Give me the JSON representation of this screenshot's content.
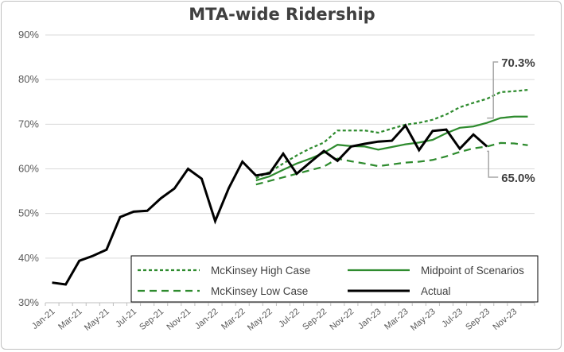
{
  "chart_data": {
    "type": "line",
    "title": "MTA-wide Ridership",
    "xlabel": "",
    "ylabel": "",
    "ylim": [
      30,
      90
    ],
    "y_ticks": [
      "30%",
      "40%",
      "50%",
      "60%",
      "70%",
      "80%",
      "90%"
    ],
    "x_ticks": [
      "Jan-21",
      "Mar-21",
      "May-21",
      "Jul-21",
      "Sep-21",
      "Nov-21",
      "Jan-22",
      "Mar-22",
      "May-22",
      "Jul-22",
      "Sep-22",
      "Nov-22",
      "Jan-23",
      "Mar-23",
      "May-23",
      "Jul-23",
      "Sep-23",
      "Nov-23"
    ],
    "grid": true,
    "legend_position": "bottom-inside",
    "series": [
      {
        "name": "Actual",
        "color": "#000000",
        "style": "solid",
        "x": [
          "Jan-21",
          "Feb-21",
          "Mar-21",
          "Apr-21",
          "May-21",
          "Jun-21",
          "Jul-21",
          "Aug-21",
          "Sep-21",
          "Oct-21",
          "Nov-21",
          "Dec-21",
          "Jan-22",
          "Feb-22",
          "Mar-22",
          "Apr-22",
          "May-22",
          "Jun-22",
          "Jul-22",
          "Aug-22",
          "Sep-22",
          "Oct-22",
          "Nov-22",
          "Dec-22",
          "Jan-23",
          "Feb-23",
          "Mar-23",
          "Apr-23",
          "May-23",
          "Jun-23",
          "Jul-23",
          "Aug-23",
          "Sep-23"
        ],
        "values": [
          34.5,
          34.1,
          39.4,
          40.5,
          41.9,
          49.2,
          50.4,
          50.6,
          53.4,
          55.6,
          60.0,
          57.8,
          48.3,
          55.7,
          61.6,
          58.5,
          59.0,
          63.4,
          58.9,
          61.5,
          64.0,
          61.8,
          65.0,
          65.6,
          66.1,
          66.3,
          69.7,
          64.2,
          68.5,
          68.8,
          64.5,
          67.7,
          65.0
        ]
      },
      {
        "name": "McKinsey High Case",
        "color": "#2e8b2e",
        "style": "short-dash",
        "x": [
          "Apr-22",
          "May-22",
          "Jun-22",
          "Jul-22",
          "Aug-22",
          "Sep-22",
          "Oct-22",
          "Nov-22",
          "Dec-22",
          "Jan-23",
          "Feb-23",
          "Mar-23",
          "Apr-23",
          "May-23",
          "Jun-23",
          "Jul-23",
          "Aug-23",
          "Sep-23",
          "Oct-23",
          "Nov-23",
          "Dec-23"
        ],
        "values": [
          57.9,
          59.3,
          61.2,
          63.0,
          64.6,
          65.9,
          68.6,
          68.6,
          68.6,
          68.1,
          69.0,
          69.9,
          70.3,
          71.0,
          72.2,
          73.8,
          74.8,
          75.7,
          77.2,
          77.4,
          77.7
        ]
      },
      {
        "name": "Midpoint of Scenarios",
        "color": "#2e8b2e",
        "style": "solid",
        "x": [
          "Apr-22",
          "May-22",
          "Jun-22",
          "Jul-22",
          "Aug-22",
          "Sep-22",
          "Oct-22",
          "Nov-22",
          "Dec-22",
          "Jan-23",
          "Feb-23",
          "Mar-23",
          "Apr-23",
          "May-23",
          "Jun-23",
          "Jul-23",
          "Aug-23",
          "Sep-23",
          "Oct-23",
          "Nov-23",
          "Dec-23"
        ],
        "values": [
          57.4,
          58.3,
          59.8,
          61.2,
          62.3,
          63.6,
          65.4,
          65.1,
          65.0,
          64.3,
          64.9,
          65.5,
          65.9,
          66.5,
          68.0,
          69.2,
          69.5,
          70.3,
          71.4,
          71.7,
          71.7
        ]
      },
      {
        "name": "McKinsey Low Case",
        "color": "#2e8b2e",
        "style": "long-dash",
        "x": [
          "Apr-22",
          "May-22",
          "Jun-22",
          "Jul-22",
          "Aug-22",
          "Sep-22",
          "Oct-22",
          "Nov-22",
          "Dec-22",
          "Jan-23",
          "Feb-23",
          "Mar-23",
          "Apr-23",
          "May-23",
          "Jun-23",
          "Jul-23",
          "Aug-23",
          "Sep-23",
          "Oct-23",
          "Nov-23",
          "Dec-23"
        ],
        "values": [
          56.5,
          57.3,
          58.1,
          58.9,
          59.7,
          60.5,
          62.3,
          61.7,
          61.2,
          60.6,
          61.0,
          61.4,
          61.6,
          62.0,
          62.8,
          63.8,
          64.6,
          65.0,
          65.8,
          65.7,
          65.3
        ]
      }
    ],
    "annotations": [
      {
        "label": "70.3%",
        "series": "Midpoint of Scenarios",
        "x": "Sep-23",
        "value": 70.3
      },
      {
        "label": "65.0%",
        "series": "Actual",
        "x": "Sep-23",
        "value": 65.0
      }
    ],
    "legend": {
      "items": [
        {
          "label": "McKinsey High Case",
          "series": "McKinsey High Case"
        },
        {
          "label": "Midpoint of Scenarios",
          "series": "Midpoint of Scenarios"
        },
        {
          "label": "McKinsey Low Case",
          "series": "McKinsey Low Case"
        },
        {
          "label": "Actual",
          "series": "Actual"
        }
      ]
    }
  }
}
